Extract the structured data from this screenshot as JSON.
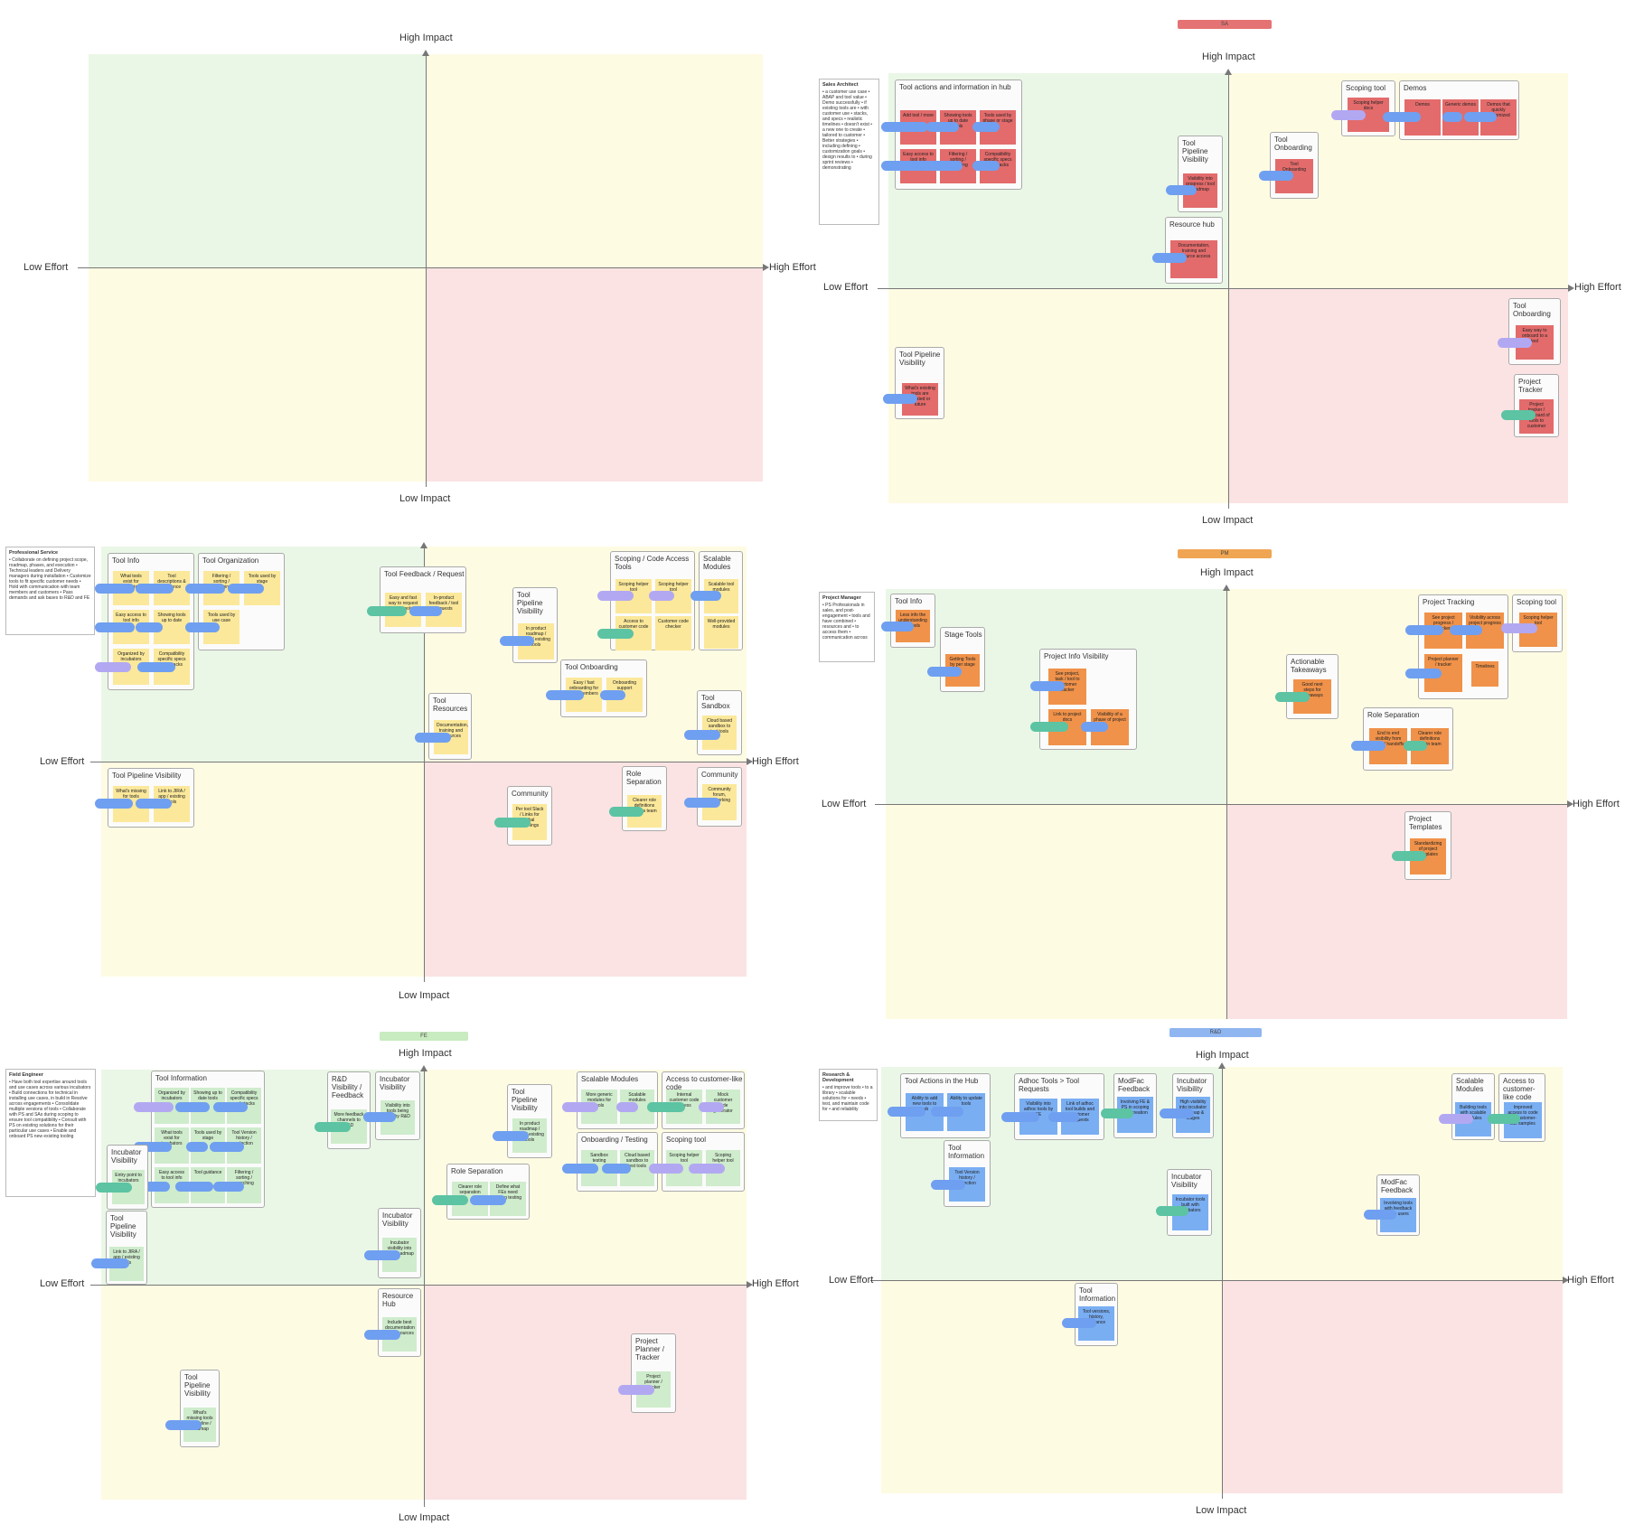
{
  "axes": {
    "high_impact": "High Impact",
    "low_impact": "Low Impact",
    "low_effort": "Low Effort",
    "high_effort": "High Effort"
  },
  "tags": {
    "sa": "SA",
    "pm": "PM",
    "fe": "FE",
    "rd": "R&D"
  },
  "colors": {
    "green_quadrant": "#eaf7e6",
    "yellow_quadrant": "#fefbe3",
    "red_quadrant": "#fbe3e3",
    "sticky_red": "#e36b6b",
    "sticky_yellow": "#fbe89a",
    "sticky_orange": "#f0924a",
    "sticky_green": "#cfeccc",
    "sticky_blue": "#7aaef2",
    "pill_blue": "#6f9ff0",
    "pill_lavender": "#b2a8f2",
    "pill_teal": "#5cc3a3"
  },
  "notes": {
    "sa_title": "Sales Architect",
    "sa_body": "• a customer use case • ABAP and tool value • Demo successfully • if existing tools are • with customer use • stacks, and specs • realistic timelines • doesn't exist • a new one to create • tailored to customer • Better strategies • including defining • customization goals • design results to • during sprint reviews • demonstrating",
    "ps_title": "Professional Service",
    "ps_body": "• Collaborate on defining project scope, roadmap, phases, and execution • Technical leaders and Delivery managers during installation • Customize tools to fit specific customer needs • Hold with communication with team members and customers • Pass demands and ask bases to R&D and FE",
    "pm_title": "Project Manager",
    "pm_body": "• PS Professionals in sales, and post-engagement • tools and have combined • resources and • to access them • communication across",
    "fe_title": "Field Engineer",
    "fe_body": "• Have both tool expertise around tools and use cases across various incubators • Build connections for technical in installing use cases, in build in Resolve across engagements • Consolidate multiple versions of tools • Collaborate with PS and SAs during scoping to ensure tool compatibility • Consult with PS on existing solutions for their particular use cases • Enable and onboard PS new existing tooling",
    "rd_title": "Research & Development",
    "rd_body": "• and improve tools • to a library • scalable solutions for • needs • test, and maintain code for • and reliability"
  },
  "sa": {
    "hub_title": "Tool actions and information in hub",
    "hub_s1": "Add tool / more",
    "hub_s2": "Showing tools up to date tools",
    "hub_s3": "Tools used by phase or stage",
    "hub_s4": "Easy access to tool info",
    "hub_s5": "Filtering / sorting / searching",
    "hub_s6": "Compatibility specific specs and stacks",
    "pipe_title": "Tool Pipeline Visibility",
    "pipe_s1": "Visibility into progress / tool roadmap",
    "res_title": "Resource hub",
    "res_s1": "Documentation, training and resource access",
    "onb_title": "Tool Onboarding",
    "onb_s1": "Tool Onboarding",
    "scope_title": "Scoping tool",
    "scope_s1": "Scoping helper docs",
    "demos_title": "Demos",
    "demos_s1": "Demos",
    "demos_s2": "Generic demos",
    "demos_s3": "Demos that quickly customized",
    "pipe2_title": "Tool Pipeline Visibility",
    "pipe2_s1": "What's existing tools are created or future",
    "onb2_title": "Tool Onboarding",
    "onb2_s1": "Easy way to onboard to a tool",
    "tracker_title": "Project Tracker",
    "tracker_s1": "Project tracker / dashboard of tools to customer"
  },
  "ps": {
    "info_title": "Tool Info",
    "info_s1": "What tools exist for incubators",
    "info_s2": "Tool descriptions & guidance",
    "info_s3": "Easy access to tool info",
    "info_s4": "Showing tools up to date",
    "info_s5": "Organized by incubators",
    "info_s6": "Compatibility specific specs and stacks",
    "org_title": "Tool Organization",
    "org_s1": "Filtering / sorting / searching",
    "org_s2": "Tools used by stage",
    "org_s3": "Tools used by use case",
    "fb_title": "Tool Feedback / Request",
    "fb_s1": "Easy and fast way to request new tools",
    "fb_s2": "In-product feedback / tool requests",
    "scope_title": "Scoping / Code Access Tools",
    "scope_s1": "Scoping helper tool",
    "scope_s2": "Scoping helper tool",
    "scope_s3": "Access to customer code",
    "scope_s4": "Customer code checker",
    "mod_title": "Scalable Modules",
    "mod_s1": "Scalable tool modules",
    "mod_s2": "Well-provided modules",
    "pipe_title": "Tool Pipeline Visibility",
    "pipe_s1": "In product roadmap / MVP / existing tools",
    "onb_title": "Tool Onboarding",
    "onb_s1": "Easy / fast onboarding for new members",
    "onb_s2": "Onboarding support",
    "res_title": "Tool Resources",
    "res_s1": "Documentation, training and resources",
    "sandbox_title": "Tool Sandbox",
    "sandbox_s1": "Cloud based sandbox to test tools",
    "pipe2_title": "Tool Pipeline Visibility",
    "pipe2_s1": "What's missing for tools",
    "pipe2_s2": "Link to JIRA / app / existing tools",
    "comm_title": "Community",
    "comm_s1": "Per tool Slack / Links for tribal learnings",
    "role_title": "Role Separation",
    "role_s1": "Clearer role definitions across team",
    "comm2_title": "Community",
    "comm2_s1": "Community forum, networking"
  },
  "pm": {
    "info_title": "Tool Info",
    "info_s1": "Less info the understanding of tools",
    "stage_title": "Stage Tools",
    "stage_s1": "Getting Tools by per stage",
    "proj_title": "Project Info Visibility",
    "proj_s1": "See project, task / tool to customer tracker",
    "proj_s2": "Link to project docs",
    "proj_s3": "Visibility of a phase of project",
    "act_title": "Actionable Takeaways",
    "act_s1": "Good next steps for takeaways",
    "track_title": "Project Tracking",
    "track_s1": "See project progress / tracker",
    "track_s2": "Visibility across project progress",
    "track_s3": "Project planner / tracker",
    "track_s4": "Timelines",
    "scope_title": "Scoping tool",
    "scope_s1": "Scoping helper tool",
    "role_title": "Role Separation",
    "role_s1": "End to end visibility from sales / handoffs",
    "role_s2": "Clearer role definitions within team",
    "tmpl_title": "Project Templates",
    "tmpl_s1": "Standardizing of project templates"
  },
  "fe": {
    "info_title": "Tool Information",
    "info_s1": "Organized by incubators",
    "info_s2": "Showing up to date tools",
    "info_s3": "Compatibility specific specs and stacks",
    "info_s4": "What tools exist for incubators",
    "info_s5": "Tools used by stage",
    "info_s6": "Tool Version history / selection",
    "info_s7": "Easy access to tool info",
    "info_s8": "Tool guidance",
    "info_s9": "Filtering / sorting / searching",
    "inc_title": "Incubator Visibility",
    "inc_s1": "Entry point to incubators",
    "rdfb_title": "R&D Visibility / Feedback",
    "rdfb_s1": "More feedback channels to R&D",
    "inc2_title": "Incubator Visibility",
    "inc2_s1": "Visibility into tools being built by R&D",
    "pipe_title": "Tool Pipeline Visibility",
    "pipe_s1": "In product roadmap / MVP / existing tools",
    "mod_title": "Scalable Modules",
    "mod_s1": "More generic modules for tools",
    "mod_s2": "Scalable modules",
    "cust_title": "Access to customer-like code",
    "cust_s1": "Internal customer code access",
    "cust_s2": "Mock customer code generator",
    "onb_title": "Onboarding / Testing",
    "onb_s1": "Sandbox testing",
    "onb_s2": "Cloud based sandbox to test tools",
    "scope_title": "Scoping tool",
    "scope_s1": "Scoping helper tool",
    "scope_s2": "Scoping helper tool",
    "role_title": "Role Separation",
    "role_s1": "Clearer role separation",
    "role_s2": "Define what FEs need during testing",
    "pipe2_title": "Tool Pipeline Visibility",
    "pipe2_s1": "Link to JIRA / app / existing tools",
    "inc3_title": "Incubator Visibility",
    "inc3_s1": "Incubator visibility into R&D roadmap",
    "hub_title": "Resource Hub",
    "hub_s1": "Include best documentation and resources",
    "planner_title": "Project Planner / Tracker",
    "planner_s1": "Project planner / tracker",
    "pipe3_title": "Tool Pipeline Visibility",
    "pipe3_s1": "What's missing tools in pipeline / roadmap"
  },
  "rd": {
    "hub_title": "Tool Actions in the Hub",
    "hub_s1": "Ability to add new tools to hub",
    "hub_s2": "Ability to update tools",
    "adhoc_title": "Adhoc Tools > Tool Requests",
    "adhoc_s1": "Visibility into adhoc tools by FE",
    "adhoc_s2": "Link of adhoc tool builds and customer requests",
    "modfac_title": "ModFac Feedback",
    "modfac_s1": "Involving FE & PS in scoping and creation",
    "inc_title": "Incubator Visibility",
    "inc_s1": "High visibility into incubator roadmap & stages",
    "info_title": "Tool Information",
    "info_s1": "Tool Version history / selection",
    "inc2_title": "Incubator Visibility",
    "inc2_s1": "Incubator tools built with incubators",
    "mod_title": "Scalable Modules",
    "mod_s1": "Building tools with scalable modules",
    "cust_title": "Access to customer-like code",
    "cust_s1": "Improved access to code via customer-like samples",
    "modfac2_title": "ModFac Feedback",
    "modfac2_s1": "Involving tools with feedback from users",
    "info2_title": "Tool Information",
    "info2_s1": "Tool versions, history, guidance"
  }
}
